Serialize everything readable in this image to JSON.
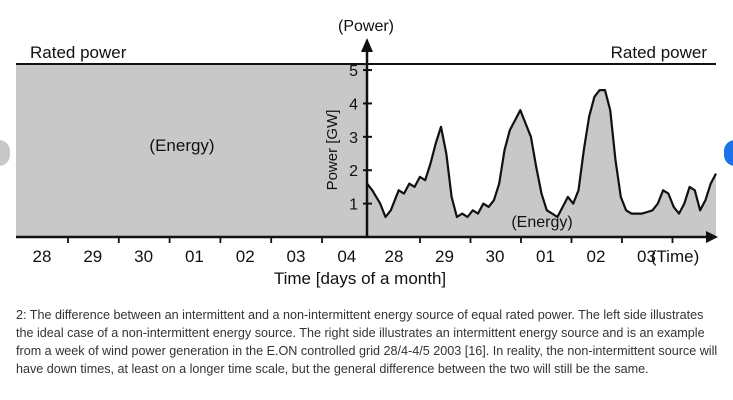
{
  "chart_data": {
    "type": "area",
    "top_label": "(Power)",
    "rated_power_left": "Rated power",
    "rated_power_right": "Rated power",
    "ylabel": "Power [GW]",
    "xlabel": "Time [days of a month]",
    "time_label": "(Time)",
    "ylim": [
      0,
      5.5
    ],
    "yticks": [
      1,
      2,
      3,
      4,
      5
    ],
    "rated_power": 5.0,
    "left_panel": {
      "label": "(Energy)",
      "categories": [
        "28",
        "29",
        "30",
        "01",
        "02",
        "03",
        "04"
      ],
      "value": 5.0
    },
    "right_panel": {
      "label": "(Energy)",
      "categories": [
        "28",
        "29",
        "30",
        "01",
        "02",
        "03"
      ],
      "series": {
        "x": [
          0,
          0.1,
          0.25,
          0.35,
          0.45,
          0.6,
          0.7,
          0.8,
          0.9,
          1.0,
          1.1,
          1.2,
          1.3,
          1.4,
          1.5,
          1.6,
          1.7,
          1.8,
          1.9,
          2.0,
          2.1,
          2.2,
          2.3,
          2.4,
          2.5,
          2.6,
          2.7,
          2.8,
          2.9,
          3.0,
          3.1,
          3.2,
          3.3,
          3.4,
          3.5,
          3.6,
          3.7,
          3.8,
          3.9,
          4.0,
          4.1,
          4.2,
          4.3,
          4.4,
          4.5,
          4.6,
          4.7,
          4.8,
          4.9,
          5.0,
          5.1,
          5.2,
          5.3,
          5.4,
          5.5,
          5.6,
          5.7,
          5.8,
          5.9,
          6.0,
          6.1,
          6.2,
          6.3,
          6.4,
          6.5,
          6.6
        ],
        "y": [
          1.6,
          1.4,
          1.0,
          0.6,
          0.8,
          1.4,
          1.3,
          1.6,
          1.5,
          1.8,
          1.7,
          2.2,
          2.8,
          3.3,
          2.5,
          1.2,
          0.6,
          0.7,
          0.6,
          0.8,
          0.7,
          1.0,
          0.9,
          1.1,
          1.6,
          2.6,
          3.2,
          3.5,
          3.8,
          3.4,
          3.0,
          2.1,
          1.3,
          0.8,
          0.7,
          0.6,
          0.9,
          1.2,
          1.0,
          1.4,
          2.6,
          3.6,
          4.2,
          4.4,
          4.4,
          3.8,
          2.3,
          1.2,
          0.8,
          0.7,
          0.7,
          0.7,
          0.75,
          0.8,
          1.0,
          1.4,
          1.3,
          0.9,
          0.7,
          1.0,
          1.5,
          1.4,
          0.8,
          1.1,
          1.6,
          1.9
        ]
      }
    }
  },
  "caption": "2: The difference between an intermittent and a non-intermittent energy source of equal rated power. The left side illustrates the ideal case of a non-intermittent energy source. The right side illustrates an intermittent energy source and is an example from a week of wind power generation in the E.ON controlled grid 28/4-4/5 2003 [16]. In reality, the non-intermittent source will have down times, at least on a longer time scale, but the general difference between the two will still be the same."
}
